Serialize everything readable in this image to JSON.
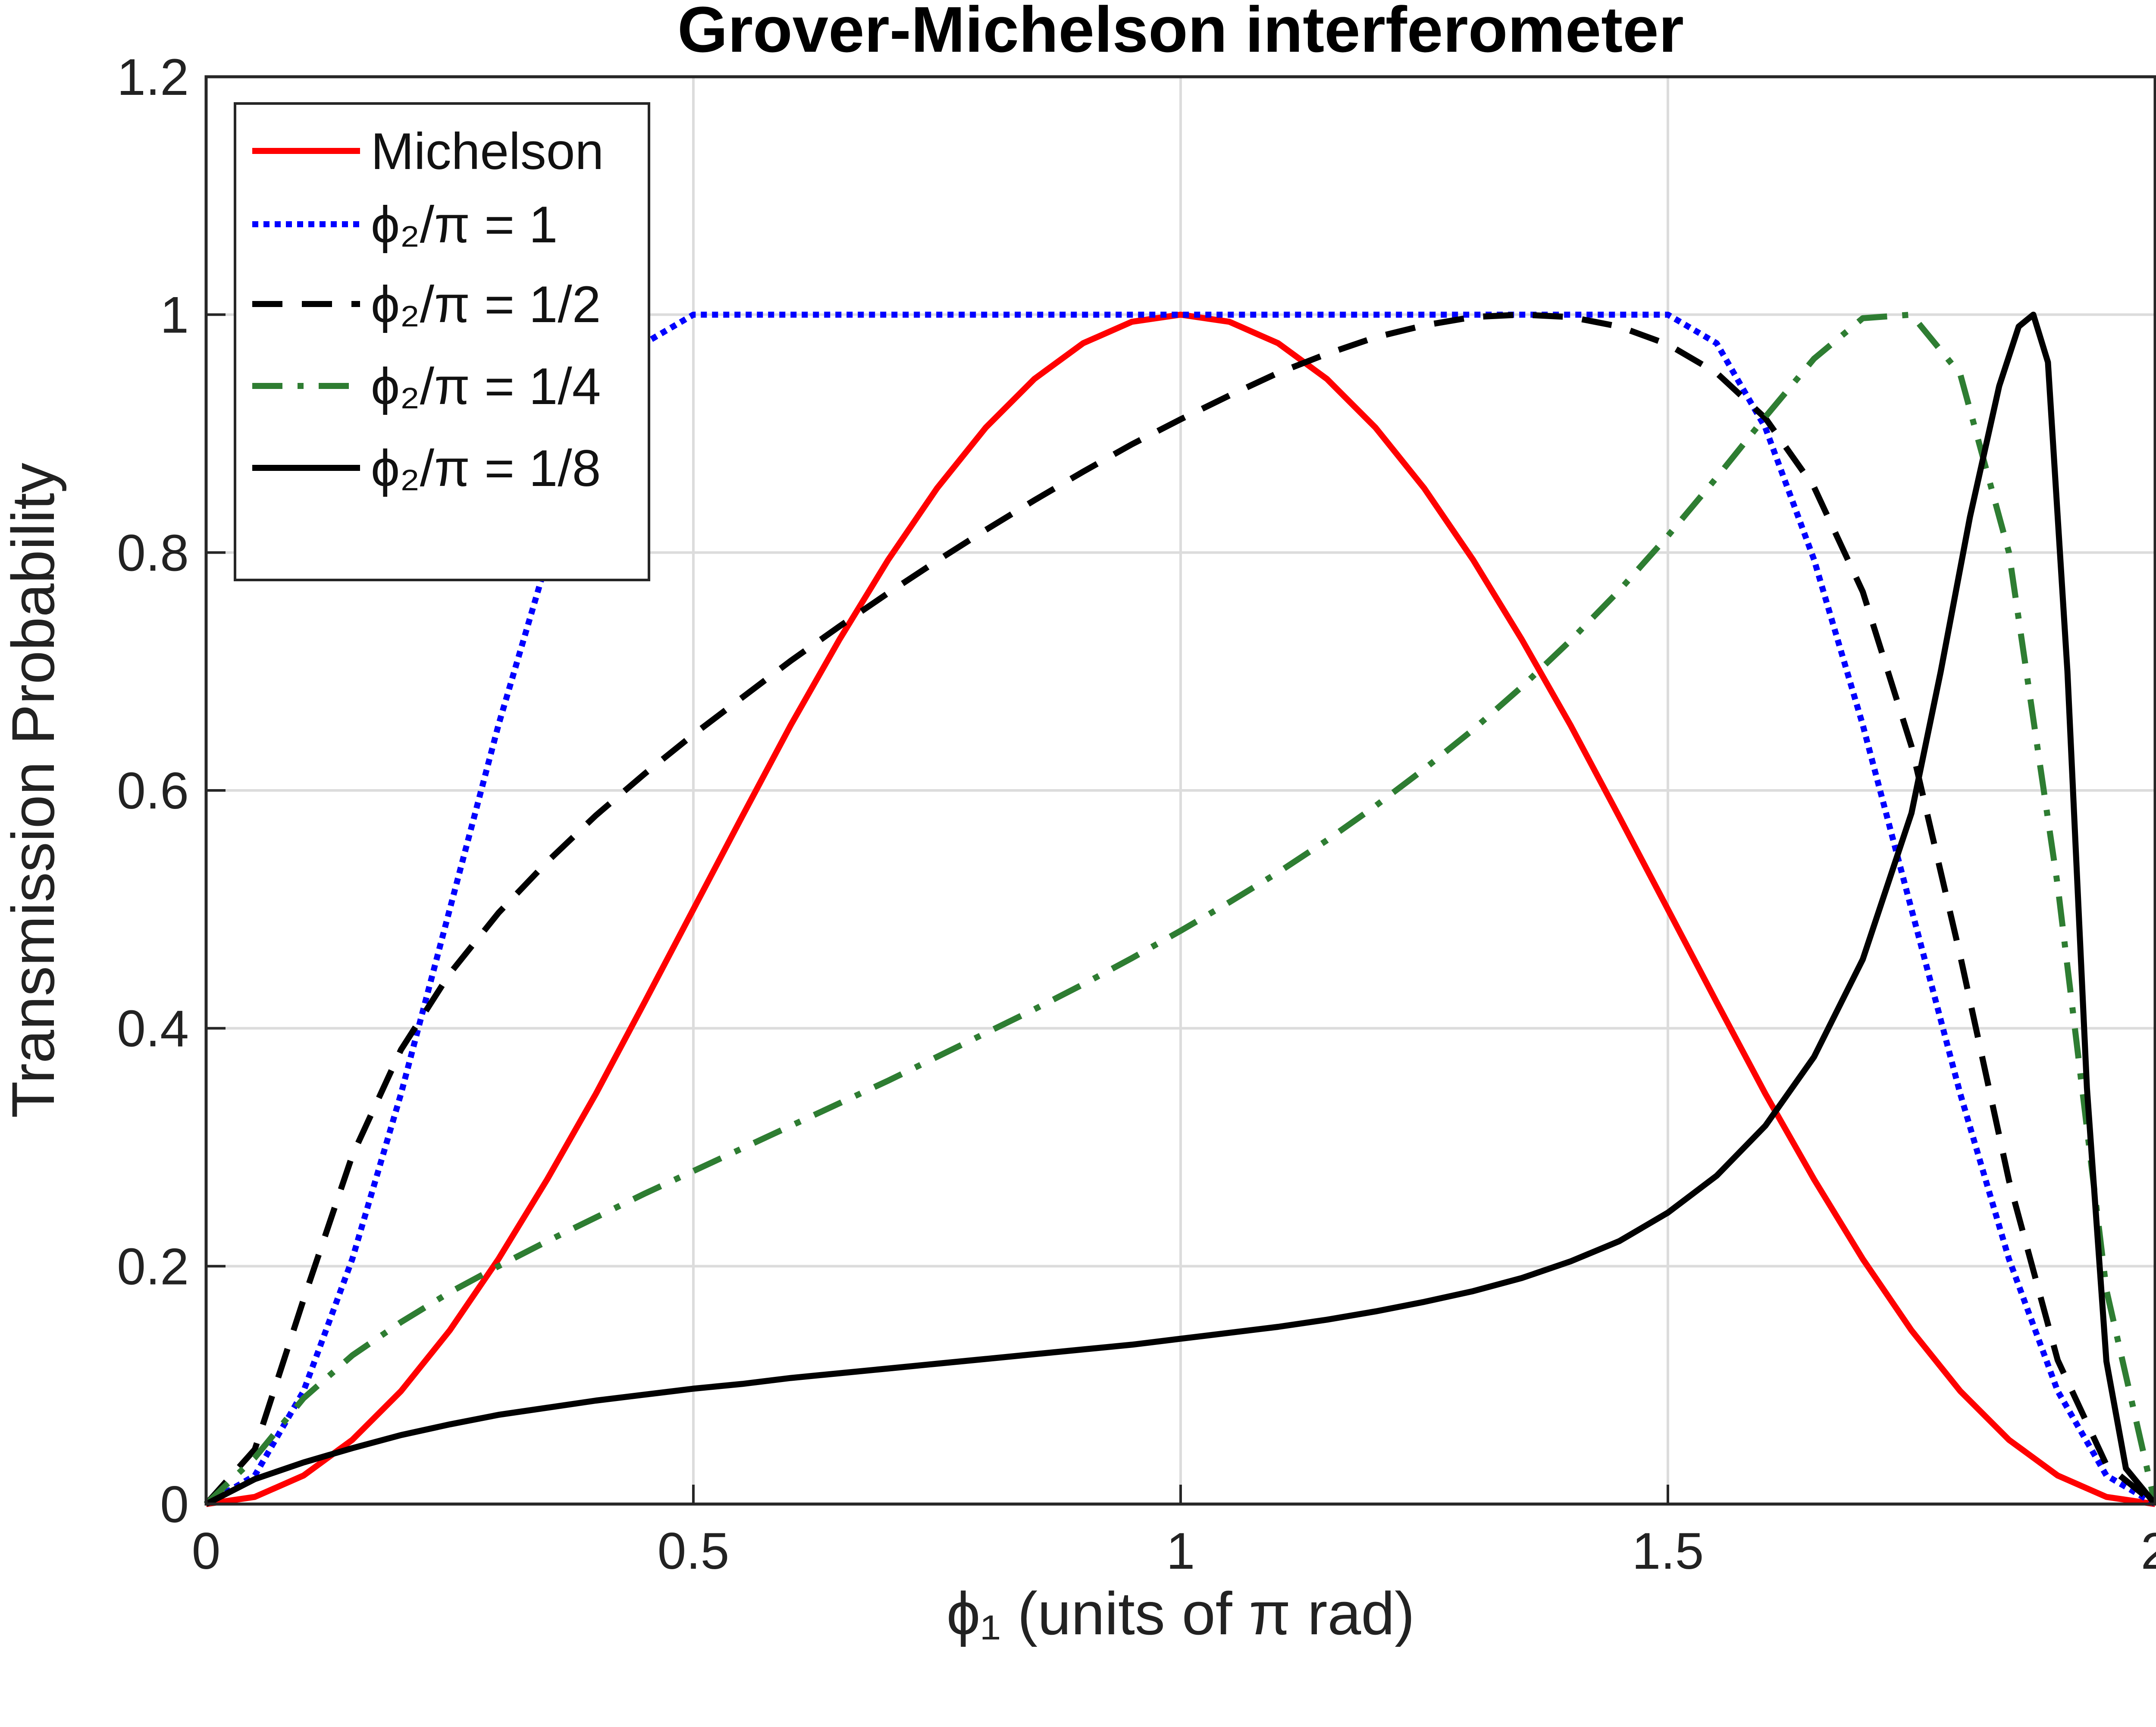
{
  "chart_data": {
    "type": "line",
    "title": "Grover-Michelson interferometer",
    "xlabel": "ϕ₁ (units of π rad)",
    "ylabel": "Transmission Probability",
    "xlim": [
      0,
      2
    ],
    "ylim": [
      0,
      1.2
    ],
    "xticks": [
      "0",
      "0.5",
      "1",
      "1.5",
      "2"
    ],
    "yticks": [
      "0",
      "0.2",
      "0.4",
      "0.6",
      "0.8",
      "1",
      "1.2"
    ],
    "grid": true,
    "legend_position": "top-left",
    "series": [
      {
        "name": "Michelson",
        "color": "#ff0000",
        "style": "solid",
        "x": [
          0,
          0.05,
          0.1,
          0.15,
          0.2,
          0.25,
          0.3,
          0.35,
          0.4,
          0.45,
          0.5,
          0.55,
          0.6,
          0.65,
          0.7,
          0.75,
          0.8,
          0.85,
          0.9,
          0.95,
          1,
          1.05,
          1.1,
          1.15,
          1.2,
          1.25,
          1.3,
          1.35,
          1.4,
          1.45,
          1.5,
          1.55,
          1.6,
          1.65,
          1.7,
          1.75,
          1.8,
          1.85,
          1.9,
          1.95,
          2
        ],
        "y": [
          0,
          0.006,
          0.024,
          0.054,
          0.095,
          0.146,
          0.206,
          0.273,
          0.345,
          0.422,
          0.5,
          0.578,
          0.655,
          0.727,
          0.794,
          0.854,
          0.905,
          0.946,
          0.976,
          0.994,
          1,
          0.994,
          0.976,
          0.946,
          0.905,
          0.854,
          0.794,
          0.727,
          0.655,
          0.578,
          0.5,
          0.422,
          0.345,
          0.273,
          0.206,
          0.146,
          0.095,
          0.054,
          0.024,
          0.006,
          0
        ]
      },
      {
        "name": "ϕ₂/π = 1",
        "color": "#0000ff",
        "style": "dotted",
        "x": [
          0,
          0.05,
          0.1,
          0.15,
          0.2,
          0.25,
          0.3,
          0.35,
          0.4,
          0.45,
          0.5,
          0.55,
          0.6,
          0.65,
          0.7,
          0.75,
          0.8,
          0.85,
          0.9,
          0.95,
          1,
          1.05,
          1.1,
          1.15,
          1.2,
          1.25,
          1.3,
          1.35,
          1.4,
          1.45,
          1.5,
          1.55,
          1.6,
          1.65,
          1.7,
          1.75,
          1.8,
          1.85,
          1.9,
          1.95,
          2
        ],
        "y": [
          0,
          0.024,
          0.095,
          0.206,
          0.345,
          0.5,
          0.655,
          0.794,
          0.905,
          0.976,
          1,
          1,
          1,
          1,
          1,
          1,
          1,
          1,
          1,
          1,
          1,
          1,
          1,
          1,
          1,
          1,
          1,
          1,
          1,
          1,
          1,
          0.976,
          0.905,
          0.794,
          0.655,
          0.5,
          0.345,
          0.206,
          0.095,
          0.024,
          0
        ]
      },
      {
        "name": "ϕ₂/π = 1/2",
        "color": "#000000",
        "style": "dashed",
        "x": [
          0,
          0.05,
          0.1,
          0.15,
          0.2,
          0.25,
          0.3,
          0.35,
          0.4,
          0.45,
          0.5,
          0.55,
          0.6,
          0.65,
          0.7,
          0.75,
          0.8,
          0.85,
          0.9,
          0.95,
          1,
          1.05,
          1.1,
          1.15,
          1.2,
          1.25,
          1.3,
          1.35,
          1.4,
          1.45,
          1.5,
          1.55,
          1.6,
          1.65,
          1.7,
          1.75,
          1.8,
          1.85,
          1.9,
          1.95,
          2
        ],
        "y": [
          0,
          0.046,
          0.172,
          0.293,
          0.382,
          0.446,
          0.497,
          0.54,
          0.579,
          0.614,
          0.647,
          0.678,
          0.709,
          0.738,
          0.766,
          0.793,
          0.819,
          0.844,
          0.868,
          0.891,
          0.912,
          0.932,
          0.951,
          0.967,
          0.981,
          0.991,
          0.998,
          1,
          0.998,
          0.99,
          0.975,
          0.951,
          0.913,
          0.855,
          0.767,
          0.637,
          0.461,
          0.272,
          0.121,
          0.033,
          0
        ]
      },
      {
        "name": "ϕ₂/π = 1/4",
        "color": "#2e7d32",
        "style": "dashdot",
        "x": [
          0,
          0.05,
          0.1,
          0.15,
          0.2,
          0.25,
          0.3,
          0.35,
          0.4,
          0.45,
          0.5,
          0.55,
          0.6,
          0.65,
          0.7,
          0.75,
          0.8,
          0.85,
          0.9,
          0.95,
          1,
          1.05,
          1.1,
          1.15,
          1.2,
          1.25,
          1.3,
          1.35,
          1.4,
          1.45,
          1.5,
          1.55,
          1.6,
          1.65,
          1.7,
          1.75,
          1.8,
          1.85,
          1.9,
          1.95,
          2
        ],
        "y": [
          0,
          0.039,
          0.089,
          0.125,
          0.153,
          0.178,
          0.2,
          0.221,
          0.241,
          0.261,
          0.28,
          0.299,
          0.318,
          0.337,
          0.356,
          0.376,
          0.396,
          0.416,
          0.437,
          0.459,
          0.482,
          0.506,
          0.531,
          0.558,
          0.587,
          0.618,
          0.651,
          0.687,
          0.726,
          0.768,
          0.814,
          0.863,
          0.914,
          0.963,
          0.997,
          1,
          0.95,
          0.8,
          0.52,
          0.18,
          0
        ]
      },
      {
        "name": "ϕ₂/π = 1/8",
        "color": "#000000",
        "style": "solid",
        "x": [
          0,
          0.05,
          0.1,
          0.15,
          0.2,
          0.25,
          0.3,
          0.35,
          0.4,
          0.45,
          0.5,
          0.55,
          0.6,
          0.65,
          0.7,
          0.75,
          0.8,
          0.85,
          0.9,
          0.95,
          1,
          1.05,
          1.1,
          1.15,
          1.2,
          1.25,
          1.3,
          1.35,
          1.4,
          1.45,
          1.5,
          1.55,
          1.6,
          1.65,
          1.7,
          1.75,
          1.78,
          1.81,
          1.84,
          1.86,
          1.875,
          1.89,
          1.91,
          1.93,
          1.95,
          1.97,
          2
        ],
        "y": [
          0,
          0.021,
          0.035,
          0.047,
          0.058,
          0.067,
          0.075,
          0.081,
          0.087,
          0.092,
          0.097,
          0.101,
          0.106,
          0.11,
          0.114,
          0.118,
          0.122,
          0.126,
          0.13,
          0.134,
          0.139,
          0.144,
          0.149,
          0.155,
          0.162,
          0.17,
          0.179,
          0.19,
          0.204,
          0.221,
          0.245,
          0.276,
          0.318,
          0.376,
          0.458,
          0.581,
          0.7,
          0.83,
          0.94,
          0.99,
          1,
          0.96,
          0.7,
          0.35,
          0.12,
          0.03,
          0
        ]
      }
    ]
  }
}
